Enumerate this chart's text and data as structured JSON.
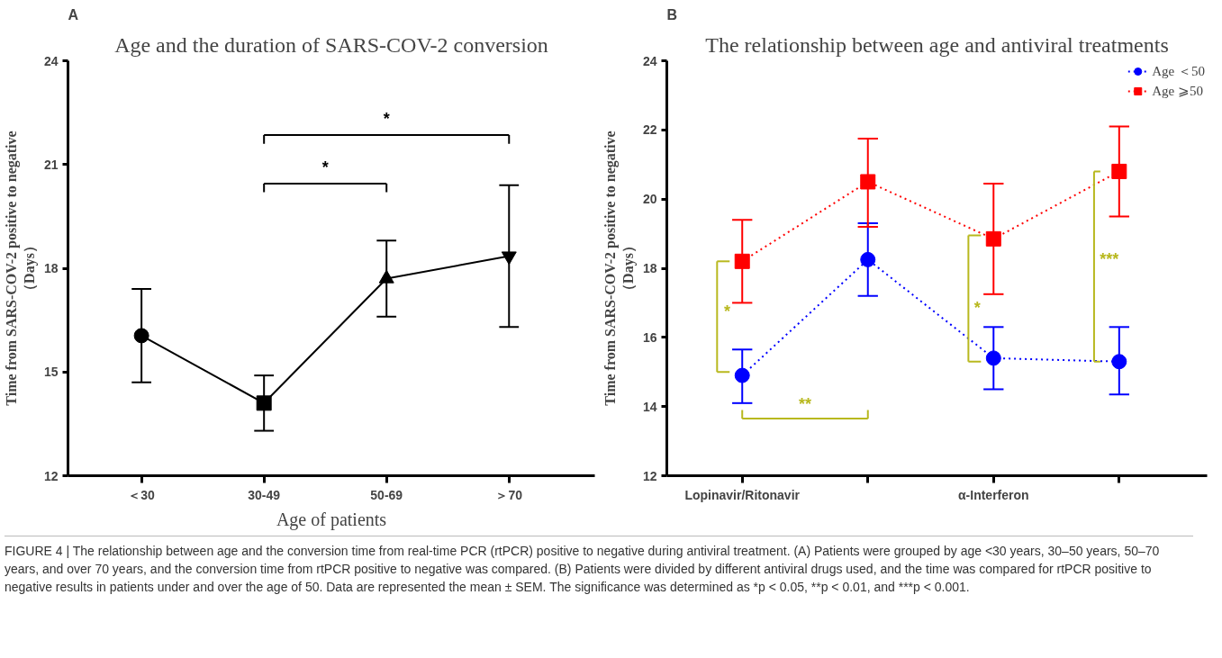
{
  "chart_data": [
    {
      "type": "line",
      "title": "Age and the duration of SARS-COV-2 conversion",
      "xlabel": "Age of patients",
      "ylabel": "Time from SARS-COV-2 positive to negative\n（Days）",
      "categories": [
        "＜30",
        "30-49",
        "50-69",
        "＞70"
      ],
      "series": [
        {
          "color": "#000000",
          "values": [
            16.05,
            14.1,
            17.7,
            18.35
          ],
          "errors": [
            [
              14.7,
              17.4
            ],
            [
              13.3,
              14.9
            ],
            [
              16.6,
              18.8
            ],
            [
              16.3,
              20.4
            ]
          ],
          "marker": [
            "circle",
            "square",
            "triangle",
            "inverted_triangle"
          ]
        }
      ],
      "ylim": [
        12,
        24
      ],
      "yticks": [
        12,
        15,
        18,
        21,
        24
      ],
      "grid": false,
      "legend": false,
      "line_style": "solid",
      "annotations": [
        "A",
        "*",
        "*",
        "FIGURE 4 | The relationship between age and the conversion time from real-time PCR (rtPCR) positive to negative during antiviral treatment. (A) Patients were grouped by age <30 years, 30–50 years, 50–70 years, and over 70 years, and the conversion time from rtPCR positive to negative was compared. (B) Patients were divided by different antiviral drugs used, and the time was compared for rtPCR positive to negative results in patients under and over the age of 50. Data are represented the mean ± SEM. The significance was determined as *p < 0.05, **p < 0.01, and ***p < 0.001."
      ]
    },
    {
      "type": "line",
      "title": "The relationship between age and antiviral treatments",
      "ylabel": "Time from SARS-COV-2 positive to negative\n（Days）",
      "categories": [
        "Lopinavir/Ritonavir",
        null,
        "α-Interferon",
        null
      ],
      "series": [
        {
          "name": "Age ＜50",
          "color": "#0000ff",
          "values": [
            14.9,
            18.25,
            15.4,
            15.3
          ],
          "errors": [
            [
              14.1,
              15.65
            ],
            [
              17.2,
              19.3
            ],
            [
              14.5,
              16.3
            ],
            [
              14.35,
              16.3
            ]
          ],
          "marker": "circle"
        },
        {
          "name": "Age ⩾50",
          "color": "#ff0000",
          "values": [
            18.2,
            20.5,
            18.85,
            20.8
          ],
          "errors": [
            [
              17.0,
              19.4
            ],
            [
              19.2,
              21.75
            ],
            [
              17.25,
              20.45
            ],
            [
              19.5,
              22.1
            ]
          ],
          "marker": "square"
        }
      ],
      "ylim": [
        12,
        24
      ],
      "yticks": [
        12,
        14,
        16,
        18,
        20,
        22,
        24
      ],
      "grid": false,
      "legend": "top right",
      "line_style": "dotted",
      "annotations": [
        "B",
        "*",
        "**",
        "*",
        "***"
      ]
    }
  ]
}
